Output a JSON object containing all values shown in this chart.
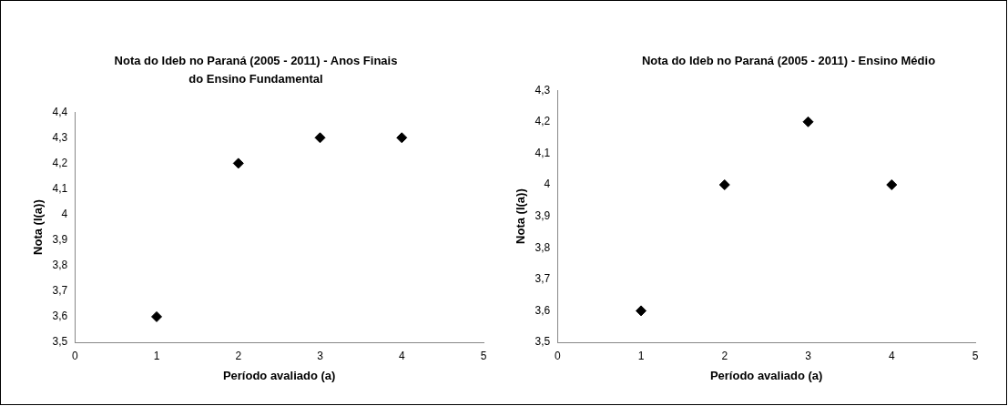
{
  "chart_data": [
    {
      "type": "scatter",
      "title": "Nota do Ideb no Paraná (2005 - 2011) - Anos Finais do Ensino Fundamental",
      "xlabel": "Período avaliado (a)",
      "ylabel": "Nota (I(a))",
      "marker": "diamond",
      "x": [
        1,
        2,
        3,
        4
      ],
      "series": [
        {
          "color": "#000000",
          "values": [
            3.6,
            4.2,
            4.3,
            4.3
          ]
        }
      ],
      "xlim": [
        0,
        5
      ],
      "xticks": [
        0,
        1,
        2,
        3,
        4,
        5
      ],
      "ylim": [
        3.5,
        4.4
      ],
      "yticks": [
        {
          "value": 3.5,
          "label": "3,5"
        },
        {
          "value": 3.6,
          "label": "3,6"
        },
        {
          "value": 3.7,
          "label": "3,7"
        },
        {
          "value": 3.8,
          "label": "3,8"
        },
        {
          "value": 3.9,
          "label": "3,9"
        },
        4,
        {
          "value": 4.1,
          "label": "4,1"
        },
        {
          "value": 4.2,
          "label": "4,2"
        },
        {
          "value": 4.3,
          "label": "4,3"
        },
        {
          "value": 4.4,
          "label": "4,4"
        }
      ]
    },
    {
      "type": "scatter",
      "title": "Nota do Ideb no Paraná (2005 - 2011) - Ensino Médio",
      "xlabel": "Período avaliado (a)",
      "ylabel": "Nota (I(a))",
      "marker": "diamond",
      "x": [
        1,
        2,
        3,
        4
      ],
      "series": [
        {
          "color": "#000000",
          "values": [
            3.6,
            4.0,
            4.2,
            4.0
          ]
        }
      ],
      "xlim": [
        0,
        5
      ],
      "xticks": [
        0,
        1,
        2,
        3,
        4,
        5
      ],
      "ylim": [
        3.5,
        4.3
      ],
      "yticks": [
        {
          "value": 3.5,
          "label": "3,5"
        },
        {
          "value": 3.6,
          "label": "3,6"
        },
        {
          "value": 3.7,
          "label": "3,7"
        },
        {
          "value": 3.8,
          "label": "3,8"
        },
        {
          "value": 3.9,
          "label": "3,9"
        },
        4,
        {
          "value": 4.1,
          "label": "4,1"
        },
        {
          "value": 4.2,
          "label": "4,2"
        },
        {
          "value": 4.3,
          "label": "4,3"
        }
      ]
    }
  ]
}
